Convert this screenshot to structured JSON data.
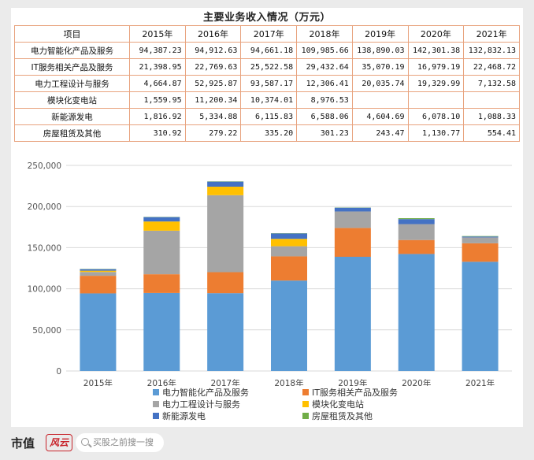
{
  "title": "主要业务收入情况（万元）",
  "table": {
    "header": [
      "项目",
      "2015年",
      "2016年",
      "2017年",
      "2018年",
      "2019年",
      "2020年",
      "2021年"
    ],
    "rows": [
      {
        "label": "电力智能化产品及服务",
        "values": [
          "94,387.23",
          "94,912.63",
          "94,661.18",
          "109,985.66",
          "138,890.03",
          "142,301.38",
          "132,832.13"
        ]
      },
      {
        "label": "IT服务相关产品及服务",
        "values": [
          "21,398.95",
          "22,769.63",
          "25,522.58",
          "29,432.64",
          "35,070.19",
          "16,979.19",
          "22,468.72"
        ]
      },
      {
        "label": "电力工程设计与服务",
        "values": [
          "4,664.87",
          "52,925.87",
          "93,587.17",
          "12,306.41",
          "20,035.74",
          "19,329.99",
          "7,132.58"
        ]
      },
      {
        "label": "模块化变电站",
        "values": [
          "1,559.95",
          "11,200.34",
          "10,374.01",
          "8,976.53",
          "",
          "",
          ""
        ]
      },
      {
        "label": "新能源发电",
        "values": [
          "1,816.92",
          "5,334.88",
          "6,115.83",
          "6,588.06",
          "4,604.69",
          "6,078.10",
          "1,088.33"
        ]
      },
      {
        "label": "房屋租赁及其他",
        "values": [
          "310.92",
          "279.22",
          "335.20",
          "301.23",
          "243.47",
          "1,130.77",
          "554.41"
        ]
      }
    ]
  },
  "chart_data": {
    "type": "bar",
    "stacked": true,
    "categories": [
      "2015年",
      "2016年",
      "2017年",
      "2018年",
      "2019年",
      "2020年",
      "2021年"
    ],
    "series": [
      {
        "name": "电力智能化产品及服务",
        "color": "#5b9bd5",
        "values": [
          94387.23,
          94912.63,
          94661.18,
          109985.66,
          138890.03,
          142301.38,
          132832.13
        ]
      },
      {
        "name": "IT服务相关产品及服务",
        "color": "#ed7d31",
        "values": [
          21398.95,
          22769.63,
          25522.58,
          29432.64,
          35070.19,
          16979.19,
          22468.72
        ]
      },
      {
        "name": "电力工程设计与服务",
        "color": "#a5a5a5",
        "values": [
          4664.87,
          52925.87,
          93587.17,
          12306.41,
          20035.74,
          19329.99,
          7132.58
        ]
      },
      {
        "name": "模块化变电站",
        "color": "#ffc000",
        "values": [
          1559.95,
          11200.34,
          10374.01,
          8976.53,
          0,
          0,
          0
        ]
      },
      {
        "name": "新能源发电",
        "color": "#4472c4",
        "values": [
          1816.92,
          5334.88,
          6115.83,
          6588.06,
          4604.69,
          6078.1,
          1088.33
        ]
      },
      {
        "name": "房屋租赁及其他",
        "color": "#70ad47",
        "values": [
          310.92,
          279.22,
          335.2,
          301.23,
          243.47,
          1130.77,
          554.41
        ]
      }
    ],
    "yticks": [
      "0",
      "50,000",
      "100,000",
      "150,000",
      "200,000",
      "250,000"
    ],
    "ylim": [
      0,
      250000
    ],
    "grid": true,
    "legend_position": "bottom"
  },
  "footer": {
    "brand": "市值",
    "logo": "风云",
    "search_placeholder": "买股之前搜一搜"
  }
}
